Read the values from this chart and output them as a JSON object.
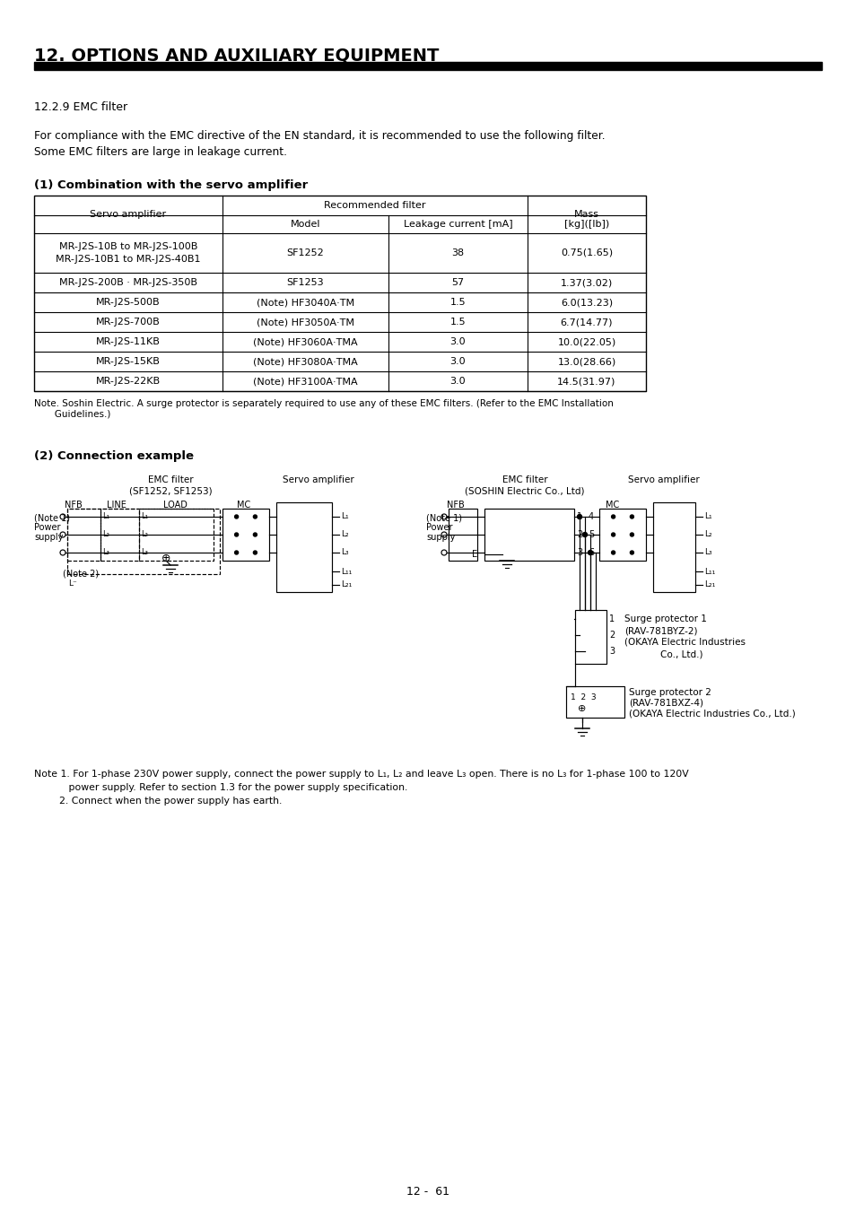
{
  "title": "12. OPTIONS AND AUXILIARY EQUIPMENT",
  "section": "12.2.9 EMC filter",
  "intro1": "For compliance with the EMC directive of the EN standard, it is recommended to use the following filter.",
  "intro2": "Some EMC filters are large in leakage current.",
  "sub1": "(1) Combination with the servo amplifier",
  "sub2": "(2) Connection example",
  "col_headers": [
    "Servo amplifier",
    "Recommended filter",
    "Mass"
  ],
  "col_subheaders": [
    "Model",
    "Leakage current [mA]",
    "[kg]([lb])"
  ],
  "rows": [
    [
      "MR-J2S-10B to MR-J2S-100B\nMR-J2S-10B1 to MR-J2S-40B1",
      "SF1252",
      "38",
      "0.75(1.65)"
    ],
    [
      "MR-J2S-200B · MR-J2S-350B",
      "SF1253",
      "57",
      "1.37(3.02)"
    ],
    [
      "MR-J2S-500B",
      "(Note) HF3040A·TM",
      "1.5",
      "6.0(13.23)"
    ],
    [
      "MR-J2S-700B",
      "(Note) HF3050A·TM",
      "1.5",
      "6.7(14.77)"
    ],
    [
      "MR-J2S-11KB",
      "(Note) HF3060A·TMA",
      "3.0",
      "10.0(22.05)"
    ],
    [
      "MR-J2S-15KB",
      "(Note) HF3080A·TMA",
      "3.0",
      "13.0(28.66)"
    ],
    [
      "MR-J2S-22KB",
      "(Note) HF3100A·TMA",
      "3.0",
      "14.5(31.97)"
    ]
  ],
  "note_table": "Note. Soshin Electric. A surge protector is separately required to use any of these EMC filters. (Refer to the EMC Installation\n       Guidelines.)",
  "note1": "Note 1. For 1-phase 230V power supply, connect the power supply to L₁, L₂ and leave L₃ open. There is no L₃ for 1-phase 100 to 120V",
  "note1b": "           power supply. Refer to section 1.3 for the power supply specification.",
  "note2": "        2. Connect when the power supply has earth.",
  "page": "12 -  61",
  "bg": "#ffffff",
  "fg": "#000000"
}
